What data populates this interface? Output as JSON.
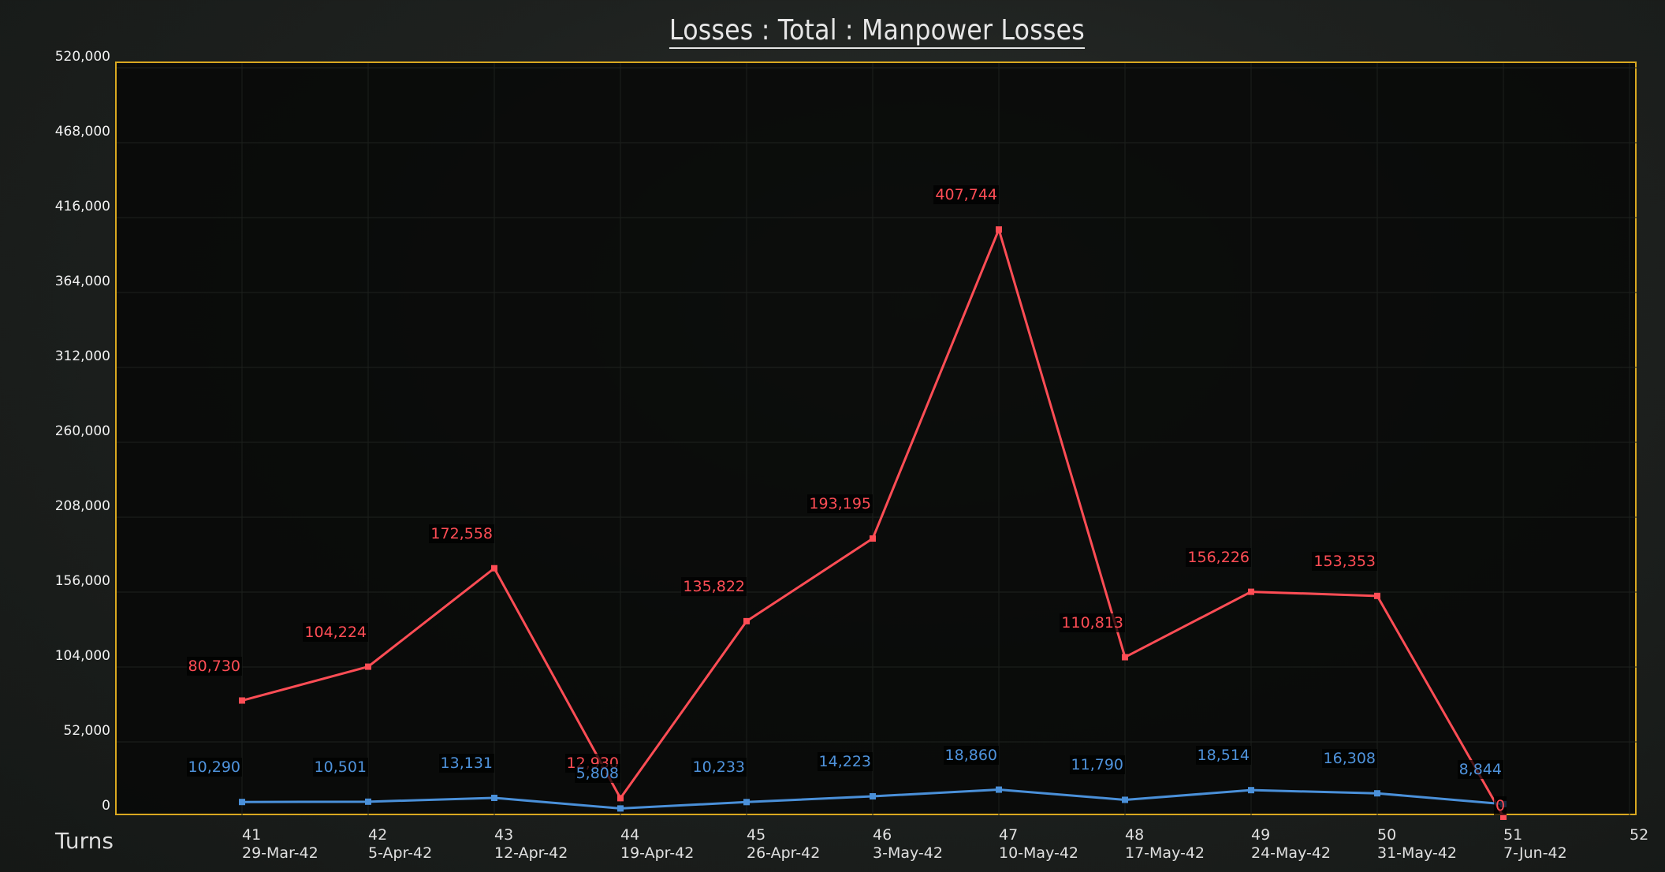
{
  "title": "Losses : Total : Manpower Losses",
  "x_axis_label": "Turns",
  "colors": {
    "red_series": "#ff4d55",
    "blue_series": "#4a90d9",
    "plot_border": "#d9a820"
  },
  "chart_data": {
    "type": "line",
    "title": "Losses : Total : Manpower Losses",
    "xlabel": "Turns",
    "ylabel": "",
    "ylim": [
      0,
      520000
    ],
    "yticks": [
      "0",
      "52,000",
      "104,000",
      "156,000",
      "208,000",
      "260,000",
      "312,000",
      "364,000",
      "416,000",
      "468,000",
      "520,000"
    ],
    "xlim": [
      41,
      52
    ],
    "x": [
      41,
      42,
      43,
      44,
      45,
      46,
      47,
      48,
      49,
      50,
      51
    ],
    "xtick_turns": [
      "41",
      "42",
      "43",
      "44",
      "45",
      "46",
      "47",
      "48",
      "49",
      "50",
      "51",
      "52"
    ],
    "xtick_dates": [
      "29-Mar-42",
      "5-Apr-42",
      "12-Apr-42",
      "19-Apr-42",
      "26-Apr-42",
      "3-May-42",
      "10-May-42",
      "17-May-42",
      "24-May-42",
      "31-May-42",
      "7-Jun-42",
      ""
    ],
    "grid": true,
    "legend": "none",
    "series": [
      {
        "name": "red",
        "color": "#ff4d55",
        "values": [
          80730,
          104224,
          172558,
          12930,
          135822,
          193195,
          407744,
          110813,
          156226,
          153353,
          0
        ],
        "labels": [
          "80,730",
          "104,224",
          "172,558",
          "12,930",
          "135,822",
          "193,195",
          "407,744",
          "110,813",
          "156,226",
          "153,353",
          "0"
        ]
      },
      {
        "name": "blue",
        "color": "#4a90d9",
        "values": [
          10290,
          10501,
          13131,
          5808,
          10233,
          14223,
          18860,
          11790,
          18514,
          16308,
          8844
        ],
        "labels": [
          "10,290",
          "10,501",
          "13,131",
          "5,808",
          "10,233",
          "14,223",
          "18,860",
          "11,790",
          "18,514",
          "16,308",
          "8,844"
        ]
      }
    ]
  }
}
